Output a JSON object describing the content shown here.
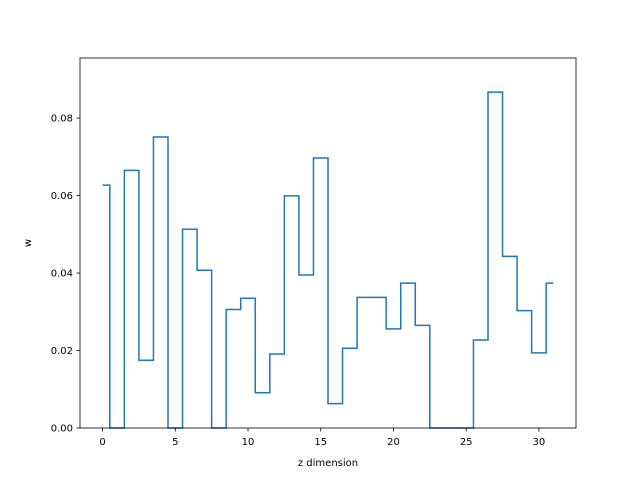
{
  "chart_data": {
    "type": "line",
    "drawstyle": "steps-mid",
    "title": "",
    "xlabel": "z dimension",
    "ylabel": "w",
    "xlim": [
      -1.55,
      32.55
    ],
    "ylim": [
      0,
      0.0955
    ],
    "xticks": [
      0,
      5,
      10,
      15,
      20,
      25,
      30
    ],
    "yticks": [
      0.0,
      0.02,
      0.04,
      0.06,
      0.08
    ],
    "ytick_labels": [
      "0.00",
      "0.02",
      "0.04",
      "0.06",
      "0.08"
    ],
    "grid": false,
    "line_color": "#1f77b4",
    "x": [
      0,
      1,
      2,
      3,
      4,
      5,
      6,
      7,
      8,
      9,
      10,
      11,
      12,
      13,
      14,
      15,
      16,
      17,
      18,
      19,
      20,
      21,
      22,
      23,
      24,
      25,
      26,
      27,
      28,
      29,
      30,
      31
    ],
    "y": [
      0.0627,
      0.0,
      0.0665,
      0.0175,
      0.0751,
      0.0,
      0.0513,
      0.0407,
      0.0,
      0.0306,
      0.0335,
      0.0091,
      0.0191,
      0.0599,
      0.0395,
      0.0697,
      0.0063,
      0.0206,
      0.0337,
      0.0337,
      0.0256,
      0.0374,
      0.0265,
      0.0,
      0.0,
      0.0,
      0.0227,
      0.0867,
      0.0443,
      0.0303,
      0.0194,
      0.0374
    ]
  }
}
